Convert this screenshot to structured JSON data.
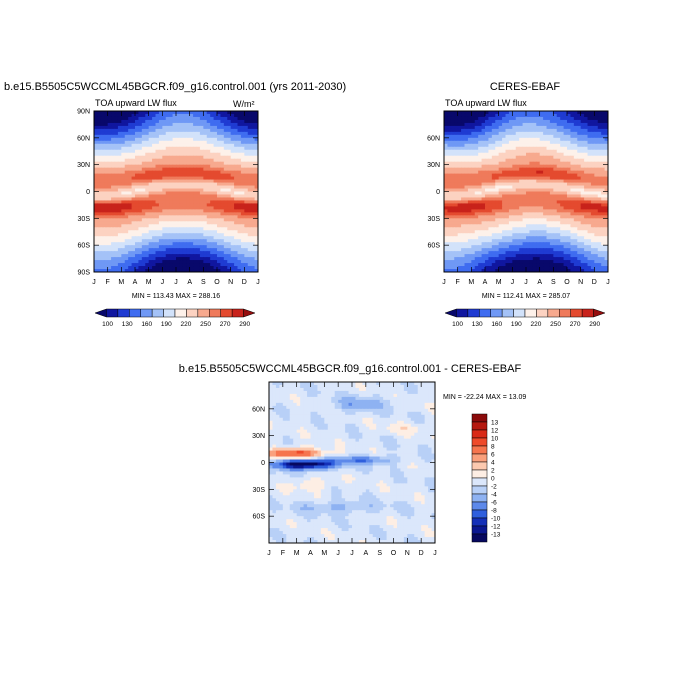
{
  "chart_data": [
    {
      "type": "heatmap",
      "title": "b.e15.B5505C5WCCML45BGCR.f09_g16.control.001 (yrs 2011-2030)",
      "subtitle_left": "TOA upward LW flux",
      "subtitle_right": "W/m²",
      "x_tick_labels": [
        "J",
        "F",
        "M",
        "A",
        "M",
        "J",
        "J",
        "A",
        "S",
        "O",
        "N",
        "D",
        "J"
      ],
      "y_tick_labels": [
        "90N",
        "60N",
        "30N",
        "0",
        "30S",
        "60S",
        "90S"
      ],
      "ylim": [
        -90,
        90
      ],
      "stats": "MIN = 113.43 MAX = 288.16",
      "colorbar_labels": [
        "100",
        "130",
        "160",
        "190",
        "220",
        "250",
        "270",
        "290"
      ]
    },
    {
      "type": "heatmap",
      "title": "CERES-EBAF",
      "subtitle_left": "TOA upward LW flux",
      "x_tick_labels": [
        "J",
        "F",
        "M",
        "A",
        "M",
        "J",
        "J",
        "A",
        "S",
        "O",
        "N",
        "D",
        "J"
      ],
      "y_tick_labels": [
        "60N",
        "30N",
        "0",
        "30S",
        "60S"
      ],
      "ylim": [
        -90,
        90
      ],
      "stats": "MIN = 112.41 MAX = 285.07",
      "colorbar_labels": [
        "100",
        "130",
        "160",
        "190",
        "220",
        "250",
        "270",
        "290"
      ]
    },
    {
      "type": "heatmap",
      "title": "b.e15.B5505C5WCCML45BGCR.f09_g16.control.001 - CERES-EBAF",
      "x_tick_labels": [
        "J",
        "F",
        "M",
        "A",
        "M",
        "J",
        "J",
        "A",
        "S",
        "O",
        "N",
        "D",
        "J"
      ],
      "y_tick_labels": [
        "60N",
        "30N",
        "0",
        "30S",
        "60S"
      ],
      "ylim": [
        -90,
        90
      ],
      "stats": "MIN = -22.24 MAX =  13.09",
      "colorbar_labels": [
        "13",
        "12",
        "10",
        "8",
        "6",
        "4",
        "2",
        "0",
        "-2",
        "-4",
        "-6",
        "-8",
        "-10",
        "-12",
        "-13"
      ]
    }
  ],
  "colors": {
    "abs_scale": [
      "#08086b",
      "#10169f",
      "#1f3bd2",
      "#3f6cf0",
      "#6f98f5",
      "#a4c2f7",
      "#d2e2fa",
      "#fdf1ea",
      "#fcd2c1",
      "#f7a98e",
      "#ef7a5b",
      "#e44a2f",
      "#c8221b",
      "#950e0e"
    ],
    "diff_scale": [
      "#8a0a0a",
      "#b5180f",
      "#d92a17",
      "#ee4a2a",
      "#f6754e",
      "#faa07c",
      "#fcc9af",
      "#fdeee4",
      "#dbe7fb",
      "#b8d0f7",
      "#8eb2f2",
      "#5d89ea",
      "#2f5fdd",
      "#1430b8",
      "#0a1790",
      "#06085f"
    ]
  }
}
